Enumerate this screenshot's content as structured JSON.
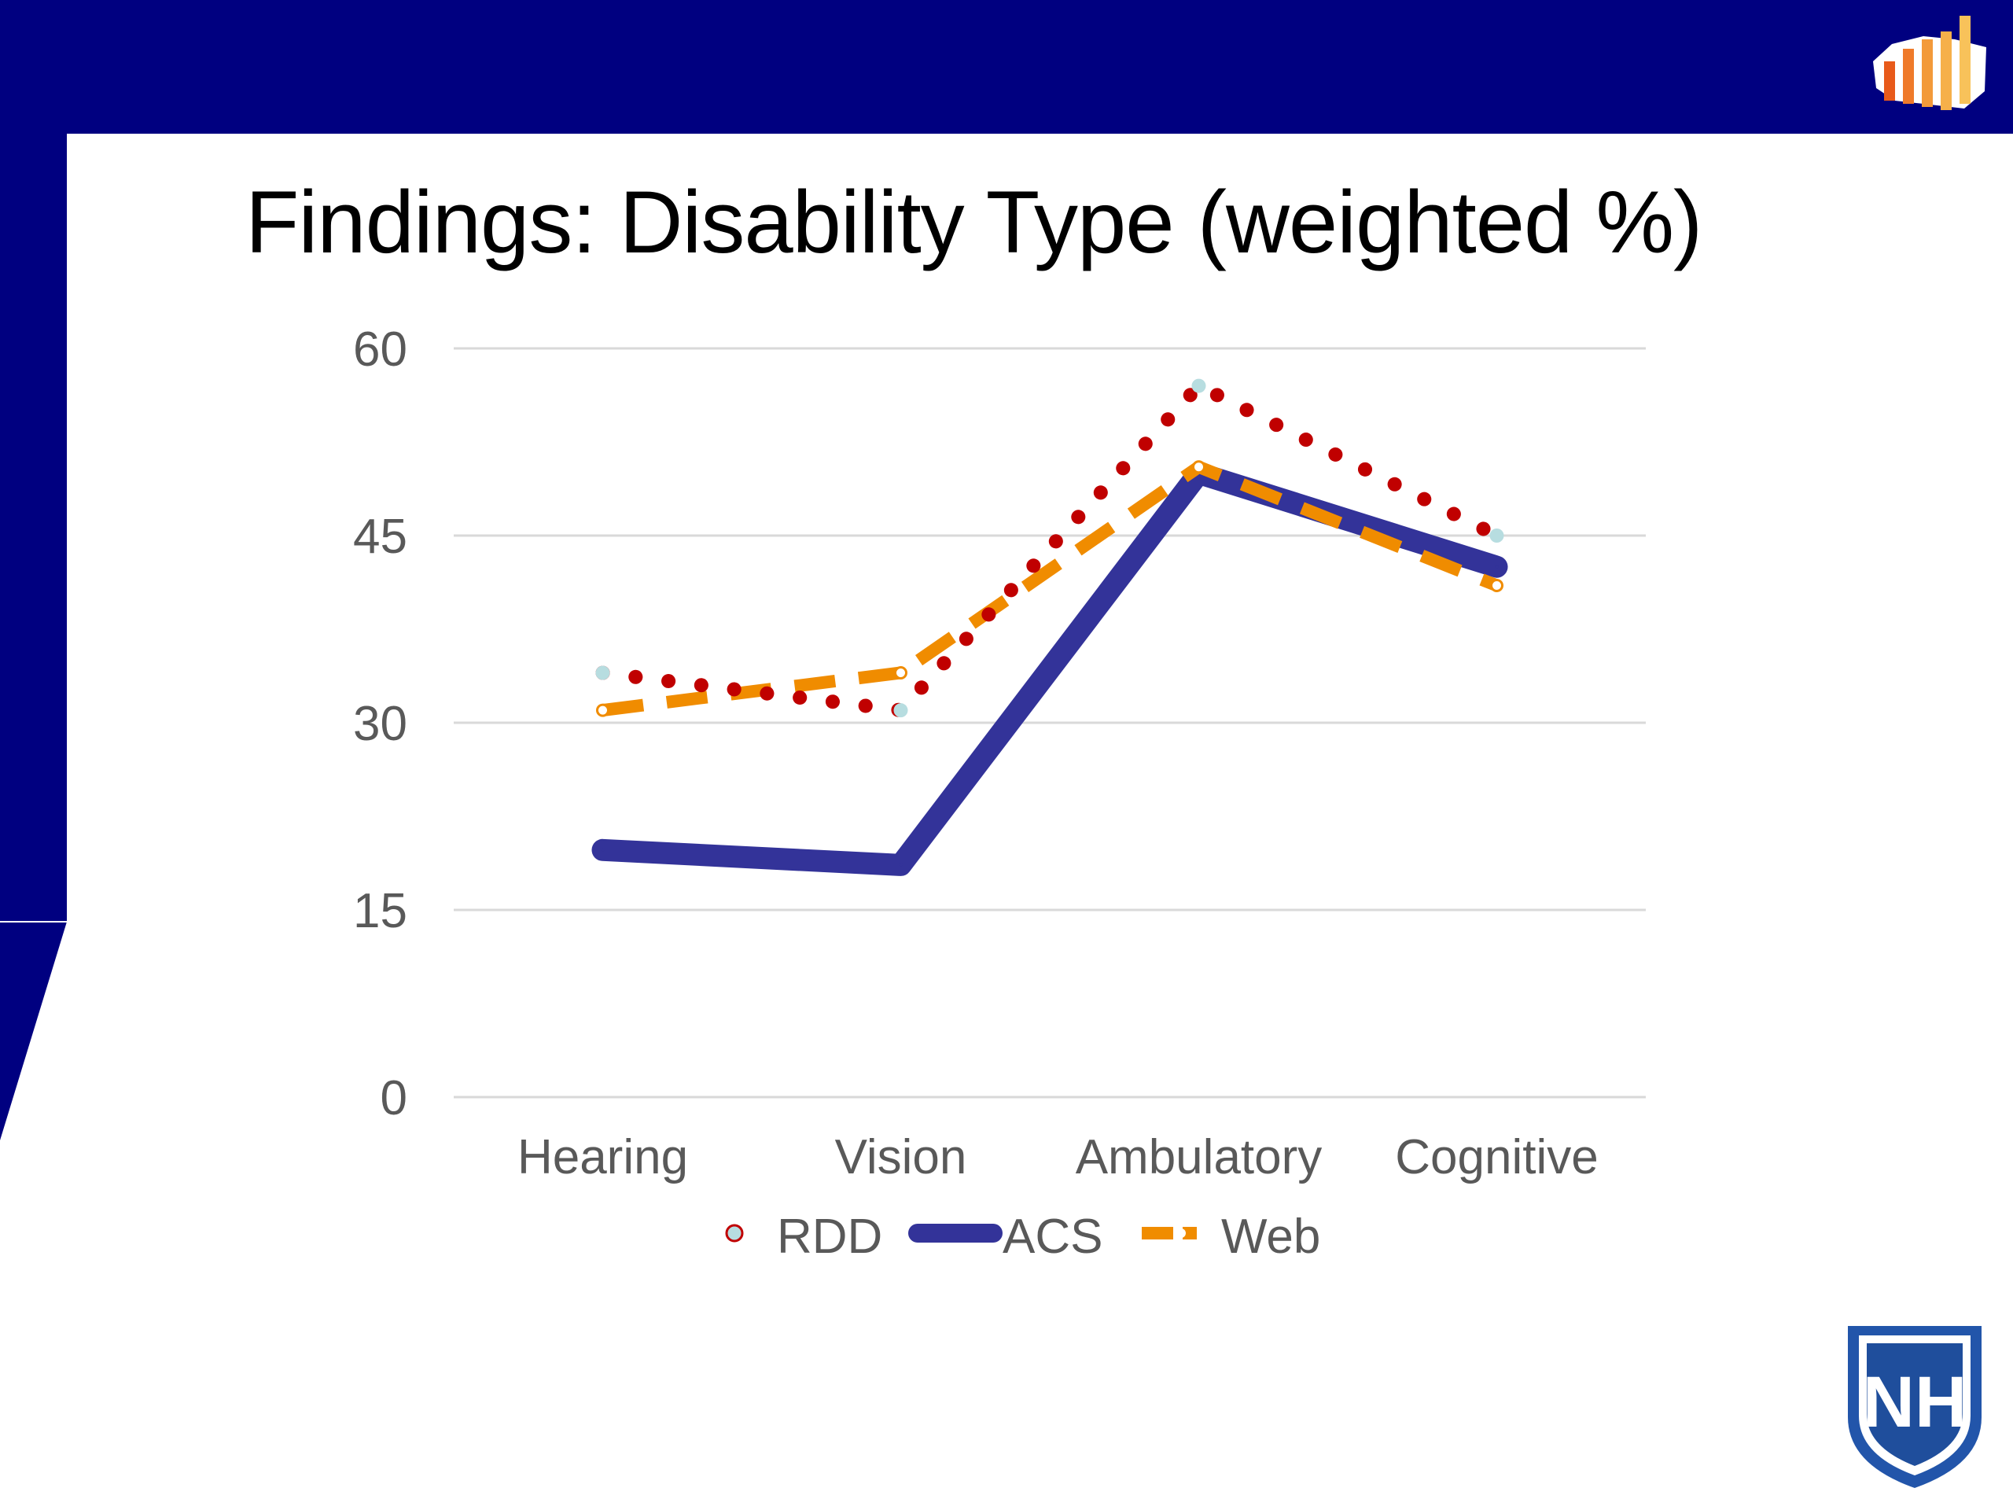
{
  "slide": {
    "title": "Findings: Disability Type (weighted %)",
    "colors": {
      "header_bg": "#000080",
      "slide_bg": "#ffffff"
    }
  },
  "logos": {
    "header_logo": "bar-chart-usa-logo",
    "footer_logo": "unh-shield-logo"
  },
  "chart_data": {
    "type": "line",
    "title": "",
    "xlabel": "",
    "ylabel": "",
    "categories": [
      "Hearing",
      "Vision",
      "Ambulatory",
      "Cognitive"
    ],
    "y_ticks": [
      "0",
      "15",
      "30",
      "45",
      "60"
    ],
    "ylim": [
      0,
      60
    ],
    "grid": true,
    "legend_position": "bottom",
    "series": [
      {
        "name": "RDD",
        "values": [
          34,
          31,
          57,
          45
        ],
        "color": "#c00000",
        "marker_color": "#b7dde0",
        "style": "dotted"
      },
      {
        "name": "ACS",
        "values": [
          19.8,
          18.6,
          50,
          42.5
        ],
        "color": "#333399",
        "style": "solid"
      },
      {
        "name": "Web",
        "values": [
          31,
          34,
          50.5,
          41
        ],
        "color": "#f08c00",
        "marker_color": "#ffffff",
        "style": "dashed"
      }
    ]
  }
}
